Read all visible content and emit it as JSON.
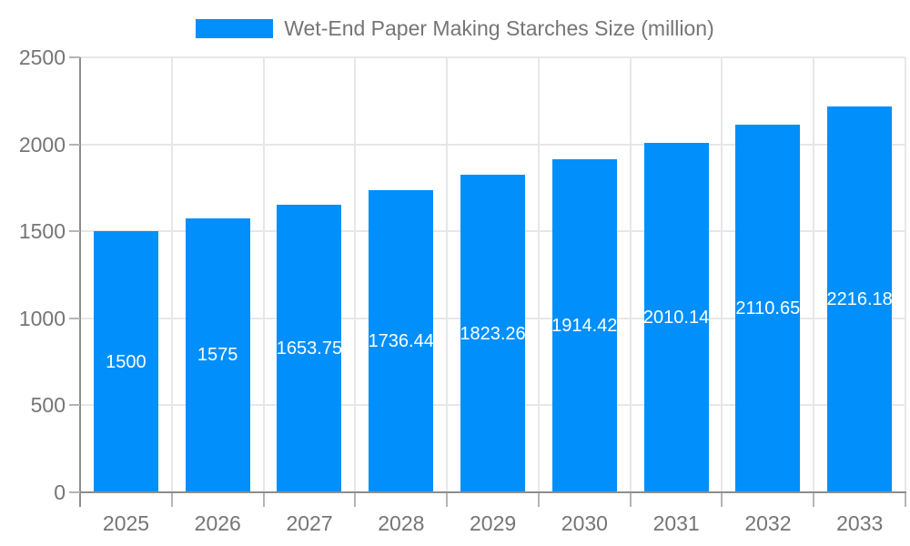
{
  "chart_data": {
    "type": "bar",
    "title": "",
    "legend": {
      "position": "top-center",
      "label": "Wet-End Paper Making Starches Size (million)"
    },
    "categories": [
      "2025",
      "2026",
      "2027",
      "2028",
      "2029",
      "2030",
      "2031",
      "2032",
      "2033"
    ],
    "series": [
      {
        "name": "Wet-End Paper Making Starches Size (million)",
        "values": [
          1500,
          1575,
          1653.75,
          1736.44,
          1823.26,
          1914.42,
          2010.14,
          2110.65,
          2216.18
        ]
      }
    ],
    "value_labels": [
      "1500",
      "1575",
      "1653.75",
      "1736.44",
      "1823.26",
      "1914.42",
      "2010.14",
      "2110.65",
      "2216.18"
    ],
    "xlabel": "",
    "ylabel": "",
    "ylim": [
      0,
      2500
    ],
    "y_ticks": [
      0,
      500,
      1000,
      1500,
      2000,
      2500
    ],
    "y_tick_labels": [
      "0",
      "500",
      "1000",
      "1500",
      "2000",
      "2500"
    ],
    "grid": true,
    "colors": {
      "bar": "#008FFB",
      "grid": "#e7e7e7",
      "axis_line": "#8d8d8d",
      "tick": "#b5b5b5",
      "axis_label": "#757575",
      "value_label": "#ffffff",
      "background": "#ffffff"
    }
  }
}
